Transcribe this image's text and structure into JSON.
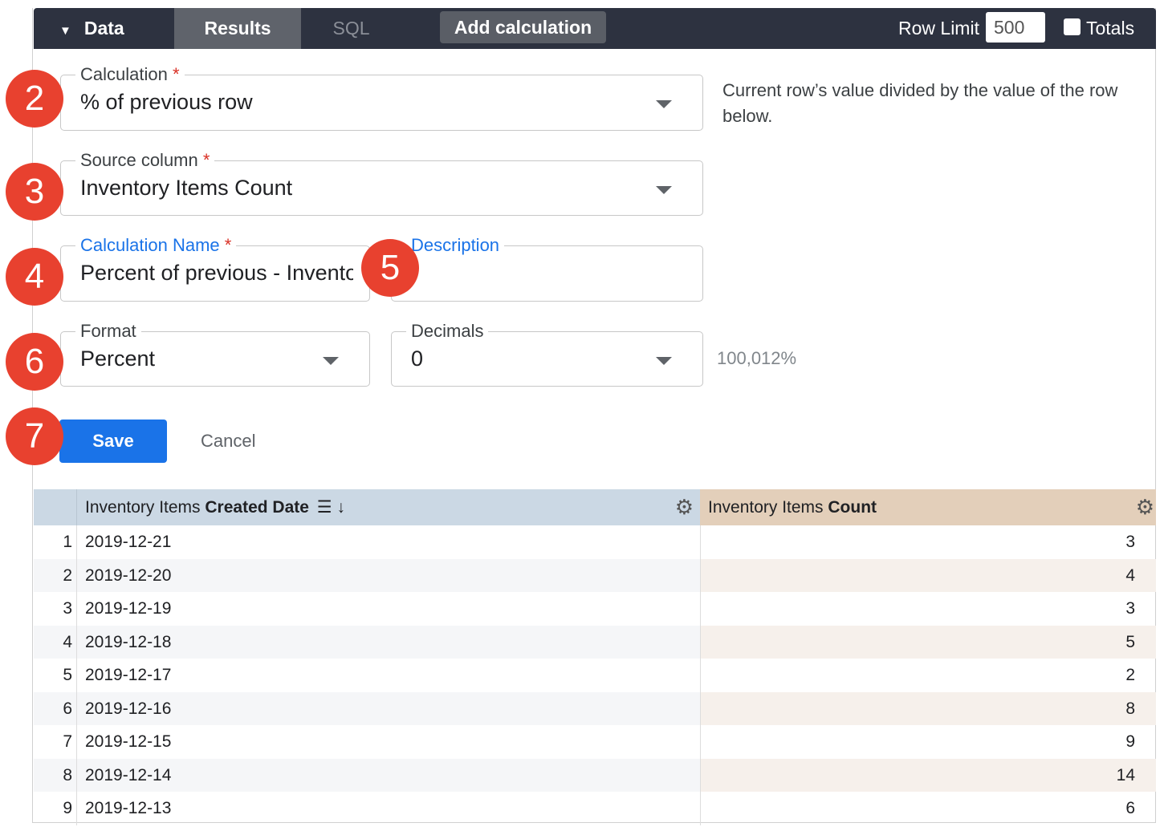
{
  "topbar": {
    "data": "Data",
    "results": "Results",
    "sql": "SQL",
    "add_calculation": "Add calculation",
    "row_limit_label": "Row Limit",
    "row_limit_value": "500",
    "totals": "Totals"
  },
  "form": {
    "calculation": {
      "label": "Calculation",
      "value": "% of previous row"
    },
    "description_help": "Current row’s value divided by the value of the row below.",
    "source_column": {
      "label": "Source column",
      "value": "Inventory Items Count"
    },
    "calculation_name": {
      "label": "Calculation Name",
      "value": "Percent of previous - Inventory Items Count"
    },
    "description": {
      "label": "Description",
      "value": ""
    },
    "format": {
      "label": "Format",
      "value": "Percent"
    },
    "decimals": {
      "label": "Decimals",
      "value": "0"
    },
    "preview": "100,012%",
    "required": "*",
    "save": "Save",
    "cancel": "Cancel"
  },
  "badges": [
    "2",
    "3",
    "4",
    "5",
    "6",
    "7"
  ],
  "colors": {
    "badge": "#e8412f",
    "save": "#1a73e8",
    "topbar": "#2d3240",
    "dimension_header": "#cbd8e4",
    "measure_header": "#e3cfba"
  },
  "table": {
    "columns": [
      {
        "prefix": "Inventory Items ",
        "bold": "Created Date"
      },
      {
        "prefix": "Inventory Items ",
        "bold": "Count"
      }
    ],
    "rows": [
      {
        "n": "1",
        "date": "2019-12-21",
        "count": "3"
      },
      {
        "n": "2",
        "date": "2019-12-20",
        "count": "4"
      },
      {
        "n": "3",
        "date": "2019-12-19",
        "count": "3"
      },
      {
        "n": "4",
        "date": "2019-12-18",
        "count": "5"
      },
      {
        "n": "5",
        "date": "2019-12-17",
        "count": "2"
      },
      {
        "n": "6",
        "date": "2019-12-16",
        "count": "8"
      },
      {
        "n": "7",
        "date": "2019-12-15",
        "count": "9"
      },
      {
        "n": "8",
        "date": "2019-12-14",
        "count": "14"
      },
      {
        "n": "9",
        "date": "2019-12-13",
        "count": "6"
      }
    ]
  }
}
